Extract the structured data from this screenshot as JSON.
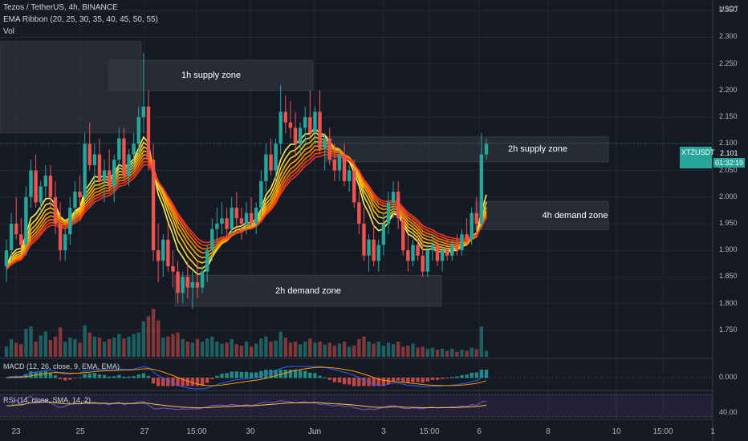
{
  "legend": {
    "title": "Tezos / TetherUS, 4h, BINANCE",
    "ribbon": "EMA Ribbon (20, 25, 30, 35, 40, 45, 50, 55)",
    "vol": "Vol",
    "macd": "MACD (12, 26, close, 9, EMA, EMA)",
    "rsi": "RSI (14, close, SMA, 14, 2)"
  },
  "currency": "USDT",
  "price_ticks": [
    "2.350",
    "2.300",
    "2.250",
    "2.200",
    "2.150",
    "2.100",
    "2.050",
    "2.000",
    "1.950",
    "1.900",
    "1.850",
    "1.800",
    "1.750"
  ],
  "x_ticks": [
    "23",
    "25",
    "27",
    "15:00",
    "30",
    "Jun",
    "3",
    "15:00",
    "6",
    "8",
    "10",
    "15:00",
    "1"
  ],
  "macd_tick": "0.000",
  "rsi_tick": "40.00",
  "last_price": {
    "symbol": "XTZUSDT",
    "price": "2.101",
    "countdown": "01:32:19"
  },
  "zones": [
    {
      "label": "1h supply zone",
      "type": "supply",
      "low": 2.2,
      "high": 2.257
    },
    {
      "label": "2h supply zone",
      "type": "supply",
      "low": 2.066,
      "high": 2.113
    },
    {
      "label": "4h demand zone",
      "type": "demand",
      "low": 1.939,
      "high": 1.992
    },
    {
      "label": "2h demand zone",
      "type": "demand",
      "low": 1.795,
      "high": 1.853
    },
    {
      "label": "",
      "type": "supply",
      "low": 2.121,
      "high": 2.292
    }
  ],
  "colors": {
    "up": "#26a69a",
    "down": "#ef5350",
    "bg": "#161a25",
    "zone": "#363a45"
  },
  "chart_data": {
    "type": "candlestick",
    "title": "Tezos / TetherUS, 4h, BINANCE",
    "ylabel": "USDT",
    "ylim": [
      1.7,
      2.37
    ],
    "candles": [
      {
        "o": 1.87,
        "h": 1.92,
        "l": 1.84,
        "c": 1.9
      },
      {
        "o": 1.9,
        "h": 1.97,
        "l": 1.88,
        "c": 1.95
      },
      {
        "o": 1.95,
        "h": 2.0,
        "l": 1.92,
        "c": 1.93
      },
      {
        "o": 1.93,
        "h": 1.96,
        "l": 1.9,
        "c": 1.91
      },
      {
        "o": 1.91,
        "h": 2.02,
        "l": 1.89,
        "c": 2.0
      },
      {
        "o": 2.0,
        "h": 2.07,
        "l": 1.98,
        "c": 2.05
      },
      {
        "o": 2.05,
        "h": 2.08,
        "l": 1.98,
        "c": 1.99
      },
      {
        "o": 1.99,
        "h": 2.03,
        "l": 1.97,
        "c": 2.02
      },
      {
        "o": 2.02,
        "h": 2.06,
        "l": 2.0,
        "c": 2.04
      },
      {
        "o": 2.04,
        "h": 2.06,
        "l": 1.98,
        "c": 2.0
      },
      {
        "o": 2.0,
        "h": 2.03,
        "l": 1.93,
        "c": 1.95
      },
      {
        "o": 1.95,
        "h": 1.99,
        "l": 1.88,
        "c": 1.9
      },
      {
        "o": 1.9,
        "h": 1.94,
        "l": 1.88,
        "c": 1.93
      },
      {
        "o": 1.93,
        "h": 2.0,
        "l": 1.91,
        "c": 1.98
      },
      {
        "o": 1.98,
        "h": 2.03,
        "l": 1.95,
        "c": 2.01
      },
      {
        "o": 2.01,
        "h": 2.04,
        "l": 1.98,
        "c": 2.0
      },
      {
        "o": 2.0,
        "h": 2.12,
        "l": 1.99,
        "c": 2.1
      },
      {
        "o": 2.1,
        "h": 2.14,
        "l": 2.05,
        "c": 2.06
      },
      {
        "o": 2.06,
        "h": 2.1,
        "l": 2.02,
        "c": 2.08
      },
      {
        "o": 2.08,
        "h": 2.11,
        "l": 2.02,
        "c": 2.03
      },
      {
        "o": 2.03,
        "h": 2.07,
        "l": 1.99,
        "c": 2.05
      },
      {
        "o": 2.05,
        "h": 2.09,
        "l": 2.01,
        "c": 2.02
      },
      {
        "o": 2.02,
        "h": 2.08,
        "l": 1.99,
        "c": 2.07
      },
      {
        "o": 2.07,
        "h": 2.13,
        "l": 2.05,
        "c": 2.11
      },
      {
        "o": 2.11,
        "h": 2.13,
        "l": 2.03,
        "c": 2.04
      },
      {
        "o": 2.04,
        "h": 2.09,
        "l": 2.02,
        "c": 2.08
      },
      {
        "o": 2.08,
        "h": 2.12,
        "l": 2.05,
        "c": 2.1
      },
      {
        "o": 2.1,
        "h": 2.17,
        "l": 2.08,
        "c": 2.15
      },
      {
        "o": 2.15,
        "h": 2.27,
        "l": 2.12,
        "c": 2.17
      },
      {
        "o": 2.17,
        "h": 2.2,
        "l": 2.05,
        "c": 2.07
      },
      {
        "o": 2.07,
        "h": 2.1,
        "l": 1.88,
        "c": 1.9
      },
      {
        "o": 1.9,
        "h": 1.95,
        "l": 1.84,
        "c": 1.88
      },
      {
        "o": 1.88,
        "h": 1.93,
        "l": 1.85,
        "c": 1.92
      },
      {
        "o": 1.92,
        "h": 1.95,
        "l": 1.86,
        "c": 1.87
      },
      {
        "o": 1.87,
        "h": 1.9,
        "l": 1.83,
        "c": 1.86
      },
      {
        "o": 1.86,
        "h": 1.88,
        "l": 1.8,
        "c": 1.82
      },
      {
        "o": 1.82,
        "h": 1.86,
        "l": 1.8,
        "c": 1.85
      },
      {
        "o": 1.85,
        "h": 1.88,
        "l": 1.81,
        "c": 1.83
      },
      {
        "o": 1.83,
        "h": 1.86,
        "l": 1.79,
        "c": 1.84
      },
      {
        "o": 1.84,
        "h": 1.88,
        "l": 1.81,
        "c": 1.83
      },
      {
        "o": 1.83,
        "h": 1.87,
        "l": 1.82,
        "c": 1.86
      },
      {
        "o": 1.86,
        "h": 1.91,
        "l": 1.84,
        "c": 1.9
      },
      {
        "o": 1.9,
        "h": 1.96,
        "l": 1.88,
        "c": 1.94
      },
      {
        "o": 1.94,
        "h": 1.98,
        "l": 1.91,
        "c": 1.95
      },
      {
        "o": 1.95,
        "h": 1.99,
        "l": 1.93,
        "c": 1.96
      },
      {
        "o": 1.96,
        "h": 1.98,
        "l": 1.92,
        "c": 1.94
      },
      {
        "o": 1.94,
        "h": 2.0,
        "l": 1.93,
        "c": 1.98
      },
      {
        "o": 1.98,
        "h": 2.01,
        "l": 1.94,
        "c": 1.96
      },
      {
        "o": 1.96,
        "h": 1.98,
        "l": 1.92,
        "c": 1.95
      },
      {
        "o": 1.95,
        "h": 1.99,
        "l": 1.93,
        "c": 1.97
      },
      {
        "o": 1.97,
        "h": 2.0,
        "l": 1.94,
        "c": 1.95
      },
      {
        "o": 1.95,
        "h": 1.99,
        "l": 1.93,
        "c": 1.98
      },
      {
        "o": 1.98,
        "h": 2.05,
        "l": 1.96,
        "c": 2.03
      },
      {
        "o": 2.03,
        "h": 2.1,
        "l": 2.01,
        "c": 2.08
      },
      {
        "o": 2.08,
        "h": 2.11,
        "l": 2.04,
        "c": 2.05
      },
      {
        "o": 2.05,
        "h": 2.11,
        "l": 2.03,
        "c": 2.1
      },
      {
        "o": 2.1,
        "h": 2.21,
        "l": 2.08,
        "c": 2.16
      },
      {
        "o": 2.16,
        "h": 2.19,
        "l": 2.12,
        "c": 2.14
      },
      {
        "o": 2.14,
        "h": 2.18,
        "l": 2.11,
        "c": 2.13
      },
      {
        "o": 2.13,
        "h": 2.16,
        "l": 2.08,
        "c": 2.1
      },
      {
        "o": 2.1,
        "h": 2.14,
        "l": 2.08,
        "c": 2.13
      },
      {
        "o": 2.13,
        "h": 2.17,
        "l": 2.1,
        "c": 2.15
      },
      {
        "o": 2.15,
        "h": 2.2,
        "l": 2.11,
        "c": 2.12
      },
      {
        "o": 2.12,
        "h": 2.17,
        "l": 2.1,
        "c": 2.16
      },
      {
        "o": 2.16,
        "h": 2.2,
        "l": 2.08,
        "c": 2.09
      },
      {
        "o": 2.09,
        "h": 2.12,
        "l": 2.05,
        "c": 2.11
      },
      {
        "o": 2.11,
        "h": 2.13,
        "l": 2.06,
        "c": 2.07
      },
      {
        "o": 2.07,
        "h": 2.1,
        "l": 2.03,
        "c": 2.05
      },
      {
        "o": 2.05,
        "h": 2.09,
        "l": 2.03,
        "c": 2.08
      },
      {
        "o": 2.08,
        "h": 2.1,
        "l": 2.02,
        "c": 2.03
      },
      {
        "o": 2.03,
        "h": 2.06,
        "l": 2.01,
        "c": 2.05
      },
      {
        "o": 2.05,
        "h": 2.07,
        "l": 1.98,
        "c": 1.99
      },
      {
        "o": 1.99,
        "h": 2.01,
        "l": 1.93,
        "c": 1.95
      },
      {
        "o": 1.95,
        "h": 1.98,
        "l": 1.88,
        "c": 1.89
      },
      {
        "o": 1.89,
        "h": 1.93,
        "l": 1.86,
        "c": 1.92
      },
      {
        "o": 1.92,
        "h": 1.95,
        "l": 1.87,
        "c": 1.88
      },
      {
        "o": 1.88,
        "h": 1.92,
        "l": 1.86,
        "c": 1.91
      },
      {
        "o": 1.91,
        "h": 1.97,
        "l": 1.89,
        "c": 1.95
      },
      {
        "o": 1.95,
        "h": 2.01,
        "l": 1.93,
        "c": 1.99
      },
      {
        "o": 1.99,
        "h": 2.03,
        "l": 1.96,
        "c": 2.01
      },
      {
        "o": 2.01,
        "h": 2.03,
        "l": 1.94,
        "c": 1.96
      },
      {
        "o": 1.96,
        "h": 1.98,
        "l": 1.89,
        "c": 1.9
      },
      {
        "o": 1.9,
        "h": 1.93,
        "l": 1.86,
        "c": 1.88
      },
      {
        "o": 1.88,
        "h": 1.92,
        "l": 1.87,
        "c": 1.91
      },
      {
        "o": 1.91,
        "h": 1.94,
        "l": 1.88,
        "c": 1.89
      },
      {
        "o": 1.89,
        "h": 1.92,
        "l": 1.85,
        "c": 1.86
      },
      {
        "o": 1.86,
        "h": 1.91,
        "l": 1.85,
        "c": 1.9
      },
      {
        "o": 1.9,
        "h": 1.93,
        "l": 1.88,
        "c": 1.91
      },
      {
        "o": 1.91,
        "h": 1.92,
        "l": 1.87,
        "c": 1.88
      },
      {
        "o": 1.88,
        "h": 1.91,
        "l": 1.86,
        "c": 1.9
      },
      {
        "o": 1.9,
        "h": 1.92,
        "l": 1.88,
        "c": 1.89
      },
      {
        "o": 1.89,
        "h": 1.92,
        "l": 1.88,
        "c": 1.91
      },
      {
        "o": 1.91,
        "h": 1.93,
        "l": 1.89,
        "c": 1.9
      },
      {
        "o": 1.9,
        "h": 1.94,
        "l": 1.89,
        "c": 1.93
      },
      {
        "o": 1.93,
        "h": 1.96,
        "l": 1.91,
        "c": 1.92
      },
      {
        "o": 1.92,
        "h": 1.98,
        "l": 1.91,
        "c": 1.97
      },
      {
        "o": 1.97,
        "h": 2.0,
        "l": 1.93,
        "c": 1.95
      },
      {
        "o": 1.95,
        "h": 2.12,
        "l": 1.94,
        "c": 2.08
      },
      {
        "o": 2.08,
        "h": 2.11,
        "l": 2.07,
        "c": 2.1
      }
    ],
    "volume": [
      20,
      35,
      28,
      25,
      55,
      60,
      30,
      42,
      50,
      33,
      40,
      58,
      30,
      38,
      35,
      28,
      62,
      48,
      40,
      38,
      30,
      35,
      38,
      45,
      36,
      40,
      45,
      48,
      70,
      80,
      95,
      72,
      38,
      40,
      45,
      48,
      35,
      30,
      28,
      35,
      30,
      36,
      40,
      30,
      26,
      28,
      35,
      25,
      22,
      30,
      20,
      26,
      36,
      40,
      30,
      32,
      50,
      38,
      28,
      30,
      25,
      30,
      36,
      28,
      30,
      24,
      28,
      22,
      26,
      30,
      20,
      22,
      35,
      40,
      30,
      26,
      30,
      22,
      28,
      25,
      30,
      20,
      22,
      26,
      18,
      20,
      16,
      18,
      14,
      16,
      12,
      16,
      10,
      14,
      12,
      18,
      15,
      60,
      12
    ]
  }
}
